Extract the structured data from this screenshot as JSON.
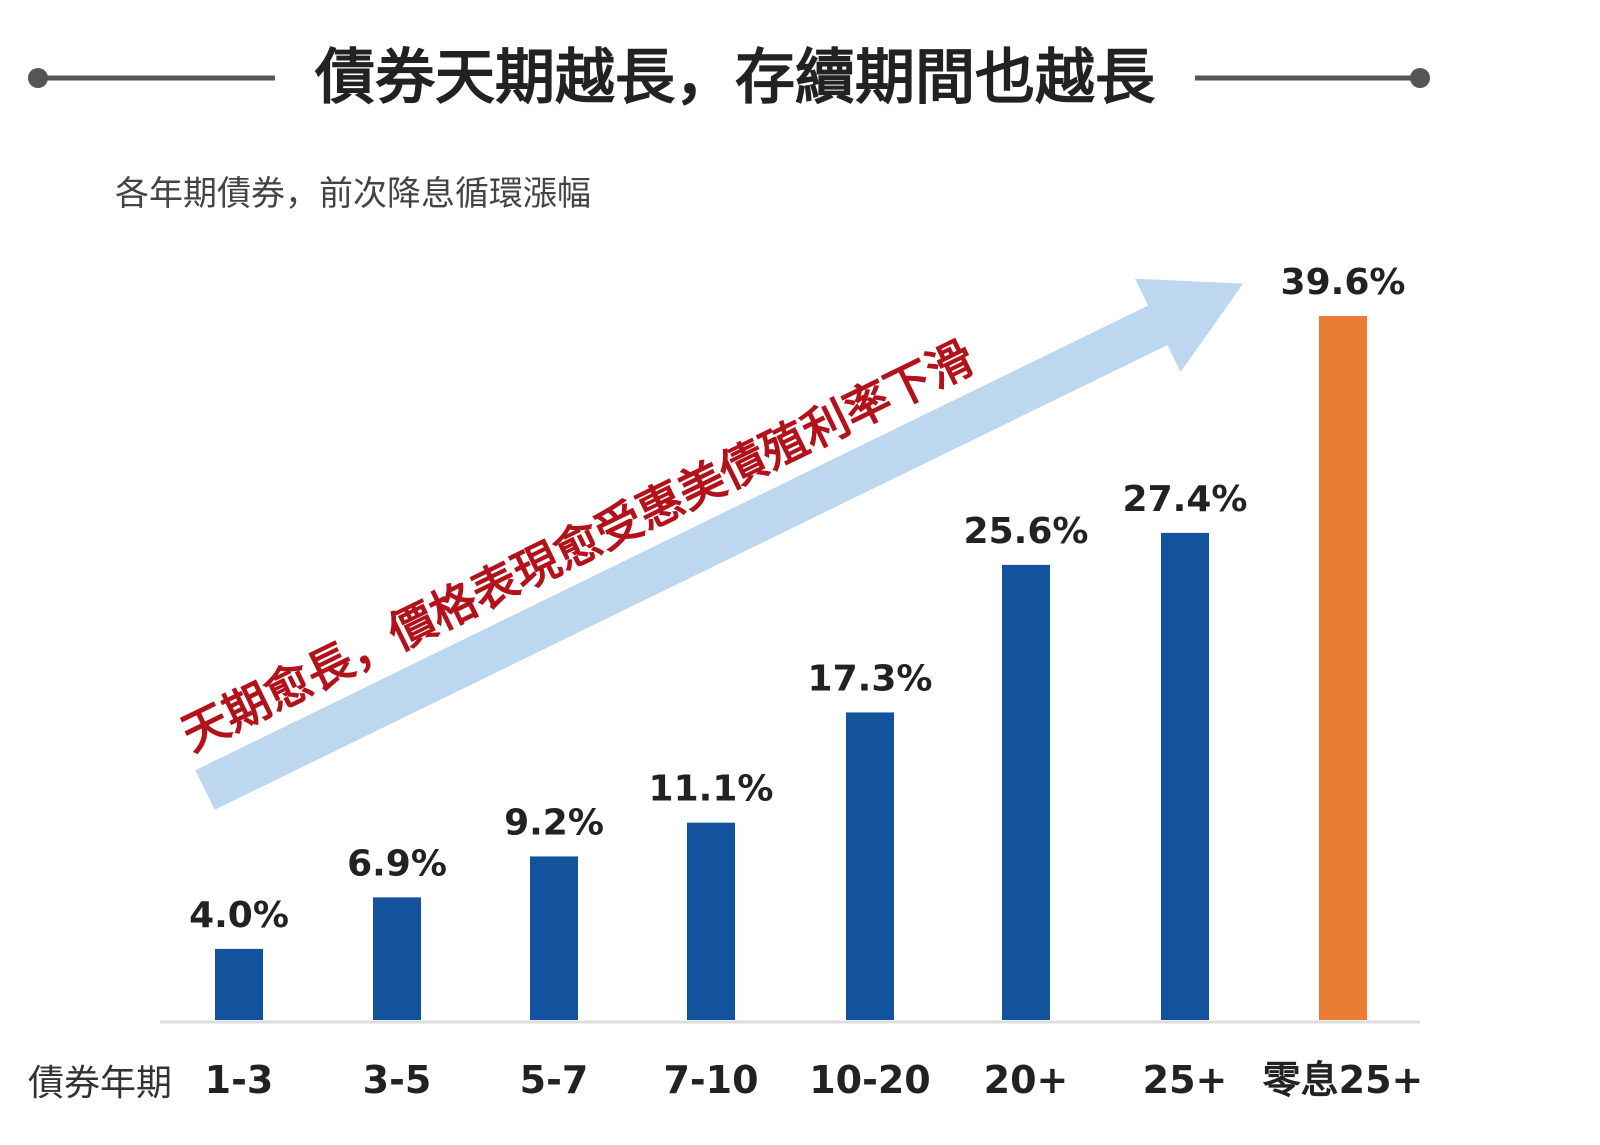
{
  "header": {
    "title": "債券天期越長，存續期間也越長"
  },
  "chart_data": {
    "type": "bar",
    "title": "債券天期越長，存續期間也越長",
    "subtitle": "各年期債券，前次降息循環漲幅",
    "xlabel": "債券年期",
    "ylabel": "",
    "categories": [
      "1-3",
      "3-5",
      "5-7",
      "7-10",
      "10-20",
      "20+",
      "25+",
      "零息25+"
    ],
    "values": [
      4.0,
      6.9,
      9.2,
      11.1,
      17.3,
      25.6,
      27.4,
      39.6
    ],
    "value_labels": [
      "4.0%",
      "6.9%",
      "9.2%",
      "11.1%",
      "17.3%",
      "25.6%",
      "27.4%",
      "39.6%"
    ],
    "ylim": [
      0,
      40
    ],
    "grid": false,
    "annotation": "天期愈長，價格表現愈受惠美債殖利率下滑",
    "colors": {
      "bar": "#13529c",
      "highlight": "#ea7d31",
      "arrow": "#bdd7ee",
      "annotation": "#b3121b",
      "title_line": "#555555"
    }
  }
}
